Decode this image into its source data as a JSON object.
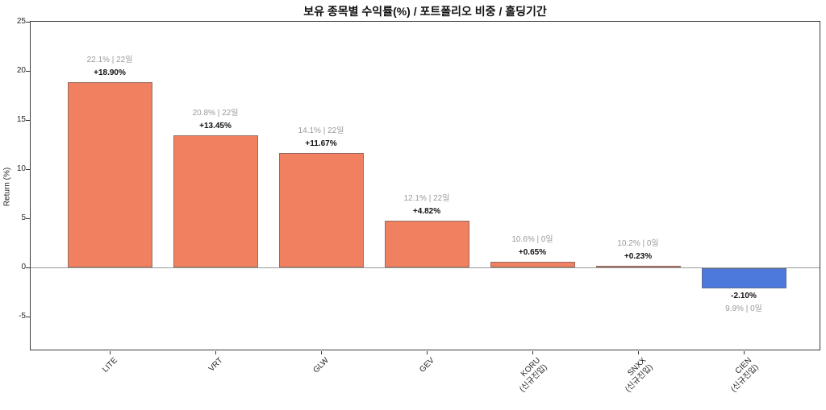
{
  "chart_data": {
    "type": "bar",
    "title": "보유 종목별 수익률(%) / 포트폴리오 비중 / 홀딩기간",
    "xlabel": "",
    "ylabel": "Return (%)",
    "ylim": [
      -8.4,
      25.1
    ],
    "yticks": [
      25,
      20,
      15,
      10,
      5,
      0,
      -5
    ],
    "grid": false,
    "zero_line": true,
    "legend": "none",
    "categories": [
      "LITE",
      "VRT",
      "GLW",
      "GEV",
      "KORU\n(신규진입)",
      "SNXX\n(신규진입)",
      "CIEN\n(신규진입)"
    ],
    "values": [
      18.9,
      13.45,
      11.67,
      4.82,
      0.65,
      0.23,
      -2.1
    ],
    "value_labels": [
      "+18.90%",
      "+13.45%",
      "+11.67%",
      "+4.82%",
      "+0.65%",
      "+0.23%",
      "-2.10%"
    ],
    "info_labels": [
      "22.1% | 22일",
      "20.8% | 22일",
      "14.1% | 22일",
      "12.1% | 22일",
      "10.6% | 0일",
      "10.2% | 0일",
      "9.9% | 0일"
    ],
    "colors": {
      "positive_bar": "#F0805F",
      "negative_bar": "#4E79DC",
      "info_label": "#9a9a9a",
      "value_label": "#111111",
      "zero_line": "#999999",
      "axis": "#3c3c3c"
    }
  }
}
